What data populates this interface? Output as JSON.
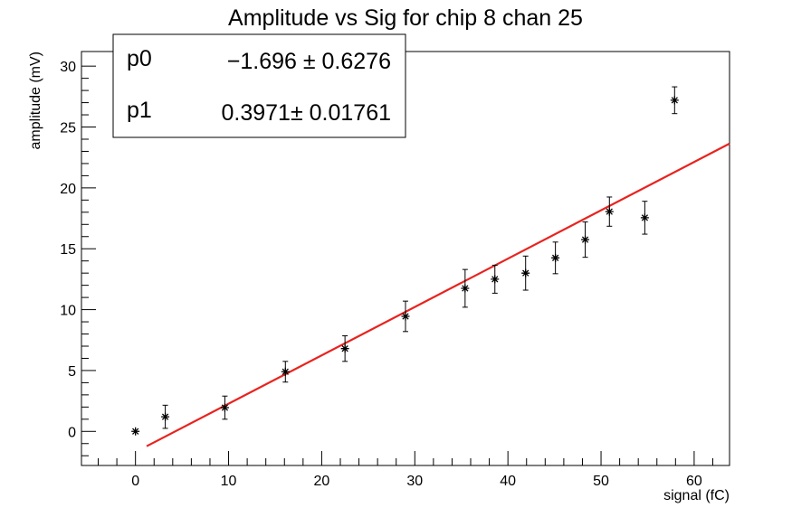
{
  "chart_data": {
    "type": "scatter",
    "title": "Amplitude vs Sig for chip 8 chan 25",
    "xlabel": "signal (fC)",
    "ylabel": "amplitude (mV)",
    "xlim": [
      -5.8,
      63.8
    ],
    "ylim": [
      -2.8,
      31.2
    ],
    "xticks": [
      "0",
      "10",
      "20",
      "30",
      "40",
      "50",
      "60"
    ],
    "yticks": [
      "0",
      "5",
      "10",
      "15",
      "20",
      "25",
      "30"
    ],
    "grid": false,
    "legend": "none",
    "series": [
      {
        "marker": "star",
        "color": "#000000",
        "points": [
          {
            "x": 0.0,
            "y": 0.0,
            "err": 0.0
          },
          {
            "x": 3.2,
            "y": 1.2,
            "err": 0.95
          },
          {
            "x": 9.6,
            "y": 1.95,
            "err": 0.95
          },
          {
            "x": 16.1,
            "y": 4.9,
            "err": 0.85
          },
          {
            "x": 22.5,
            "y": 6.8,
            "err": 1.05
          },
          {
            "x": 29.0,
            "y": 9.45,
            "err": 1.25
          },
          {
            "x": 35.4,
            "y": 11.75,
            "err": 1.55
          },
          {
            "x": 38.6,
            "y": 12.5,
            "err": 1.15
          },
          {
            "x": 41.9,
            "y": 13.0,
            "err": 1.4
          },
          {
            "x": 45.1,
            "y": 14.25,
            "err": 1.3
          },
          {
            "x": 48.3,
            "y": 15.75,
            "err": 1.45
          },
          {
            "x": 50.9,
            "y": 18.05,
            "err": 1.2
          },
          {
            "x": 54.7,
            "y": 17.55,
            "err": 1.35
          },
          {
            "x": 57.9,
            "y": 27.2,
            "err": 1.1
          }
        ]
      }
    ],
    "fit": {
      "color": "#e8231f",
      "p0": -1.696,
      "p1": 0.3971,
      "x_range": [
        1.2,
        63.8
      ]
    },
    "stats": [
      {
        "name": "p0",
        "value": "−1.696 ± 0.6276"
      },
      {
        "name": "p1",
        "value": "0.3971± 0.01761"
      }
    ]
  }
}
